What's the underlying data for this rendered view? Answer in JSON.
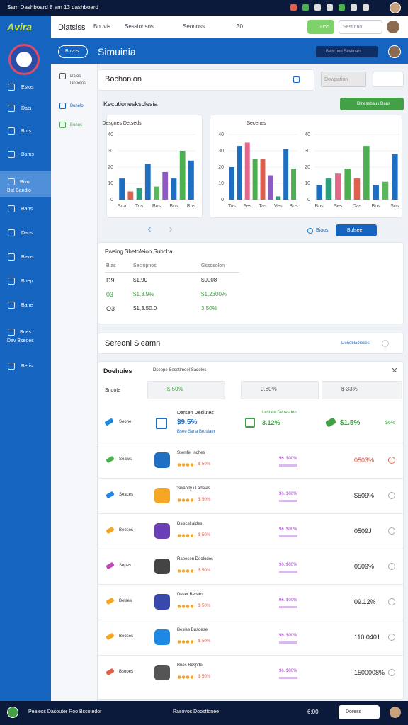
{
  "status_bar": {
    "text": "Sam Dashboard 8 am 13 dashboard"
  },
  "header": {
    "logo": "Avira",
    "nav": [
      "Dlatsiss",
      "Bouvis",
      "Sessionsos",
      "Seonoss",
      "30"
    ],
    "button": "Doo",
    "search": "Sestinno"
  },
  "banner": {
    "button": "Bnvos",
    "title": "Simuinia",
    "search": "Beocuon Sevtinars"
  },
  "sidebar": {
    "items": [
      {
        "label": "Estos"
      },
      {
        "label": "Dats"
      },
      {
        "label": "Bots"
      },
      {
        "label": "Bams"
      },
      {
        "label": "Bivo",
        "sub": "Bst Bandlo",
        "active": true
      },
      {
        "label": "Bans"
      },
      {
        "label": "Dans"
      },
      {
        "label": "Bleos"
      },
      {
        "label": "Bnep"
      },
      {
        "label": "Bane"
      },
      {
        "label": "Bnes",
        "sub": "Dav Bsedes"
      },
      {
        "label": "Beris"
      }
    ]
  },
  "subnav": {
    "items": [
      "Dalos Donelos",
      "Bonelo",
      "Bonos"
    ]
  },
  "search_bar": {
    "label": "Bochonion",
    "filter": "Dowpation"
  },
  "section": {
    "title": "Kecutionesksclesia",
    "button": "Dinessbaus Dans"
  },
  "charts": [
    {
      "title": "Desgnes Detseds",
      "categories": [
        "Sna",
        null,
        "Tus",
        null,
        "Bos",
        null,
        "Bus",
        null,
        "Bns"
      ],
      "values": [
        13,
        5,
        7,
        22,
        8,
        17,
        13,
        30,
        24
      ],
      "colors": [
        "#1e6fc2",
        "#e0604e",
        "#2aa07a",
        "#1e6fc2",
        "#5cb85c",
        "#8e5bc4",
        "#1e6fc2",
        "#4caf50",
        "#1e6fc2"
      ],
      "ylim": [
        0,
        40
      ],
      "yticks": [
        0,
        10,
        20,
        30,
        40
      ]
    },
    {
      "title": "Secenes",
      "categories": [
        "Tos",
        null,
        "Fes",
        null,
        "Tas",
        null,
        "Ves",
        null,
        "Bus"
      ],
      "values": [
        20,
        33,
        35,
        25,
        25,
        15,
        2,
        31,
        19
      ],
      "colors": [
        "#1e6fc2",
        "#1e6fc2",
        "#e06a8a",
        "#4caf50",
        "#e0604e",
        "#8e5bc4",
        "#2aa07a",
        "#1e6fc2",
        "#4caf50"
      ],
      "ylim": [
        0,
        40
      ],
      "yticks": [
        0,
        10,
        20,
        30,
        40
      ]
    },
    {
      "categories": [
        "Bus",
        null,
        "Ses",
        null,
        "Das",
        null,
        "Bus",
        null,
        "Sus"
      ],
      "values": [
        9,
        13,
        16,
        19,
        13,
        33,
        9,
        11,
        28
      ],
      "colors": [
        "#1e6fc2",
        "#2aa07a",
        "#e06a8a",
        "#4caf50",
        "#e0604e",
        "#4caf50",
        "#1e6fc2",
        "#5cb85c",
        "#1e6fc2"
      ],
      "ylim": [
        0,
        40
      ],
      "yticks": [
        0,
        10,
        20,
        30,
        40
      ]
    }
  ],
  "pagination": {
    "filter": "Biaus",
    "button": "Bulsee"
  },
  "table": {
    "title": "Pwsing Sbetofeion Subcha",
    "columns": [
      "Blas",
      "Seclopnos",
      "Gssosolon"
    ],
    "rows": [
      [
        "D9",
        "$1,90",
        "$0008"
      ],
      [
        "03",
        "$1,3.9%",
        "$1,2300%"
      ],
      [
        "O3",
        "$1,3.50.0",
        "3.50%"
      ]
    ]
  },
  "section2": {
    "title": "Sereonl Sleamn",
    "link": "Denoblaoleses"
  },
  "list": {
    "title": "Doehuies",
    "subtitle": "Dseppe Sesetlmeel Sadeles",
    "filter_label": "Snoote",
    "filters": [
      "$.50%",
      "0.80%",
      "$ 33%"
    ],
    "featured": {
      "tag": "Seone",
      "title": "Dersen Deslutes",
      "value": "$9.5%",
      "link": "Bsee Sana Brostaer",
      "mid_title": "Lesnee Denesden",
      "mid_value": "3.12%",
      "right_value": "$1.5%",
      "right_small": "$6%"
    },
    "rows": [
      {
        "tag": "Seaws",
        "title": "Ssenfel Inches",
        "rating": "$ 50%",
        "mid": "96. $00%",
        "value": "0503%",
        "icon": "#1e6fc2",
        "tag_color": "#4caf50"
      },
      {
        "tag": "Seaces",
        "title": "Swahity ul adales",
        "rating": "$ 50%",
        "mid": "96. $00%",
        "value": "$509%",
        "icon": "#f5a623",
        "tag_color": "#1e88e5"
      },
      {
        "tag": "Beoses",
        "title": "Dsiscel aldes",
        "rating": "$ 50%",
        "mid": "96. $00%",
        "value": "0509J",
        "icon": "#6a3fb5",
        "tag_color": "#f5a623"
      },
      {
        "tag": "Sepes",
        "title": "Rapesen Deolodes",
        "rating": "$ 50%",
        "mid": "96. $00%",
        "value": "0509%",
        "icon": "#444444",
        "tag_color": "#c04ab8"
      },
      {
        "tag": "Belses",
        "title": "Deser Beistes",
        "rating": "$ 50%",
        "mid": "96. $00%",
        "value": "09.12%",
        "icon": "#3949ab",
        "tag_color": "#f5a623"
      },
      {
        "tag": "Beoses",
        "title": "Besies Busdese",
        "rating": "$ 50%",
        "mid": "96. $00%",
        "value": "110,0401",
        "icon": "#1e88e5",
        "tag_color": "#f5a623"
      },
      {
        "tag": "Bsooes",
        "title": "Bnes Bespde",
        "rating": "$ 50%",
        "mid": "96. $00%",
        "value": "1500008%",
        "icon": "#555555",
        "tag_color": "#e0604e"
      }
    ]
  },
  "footer": {
    "left": "Pealess Dasouter Roo Bscotedor",
    "center": "Rasovos Doosttonee",
    "time": "6:00",
    "button": "Doress"
  }
}
